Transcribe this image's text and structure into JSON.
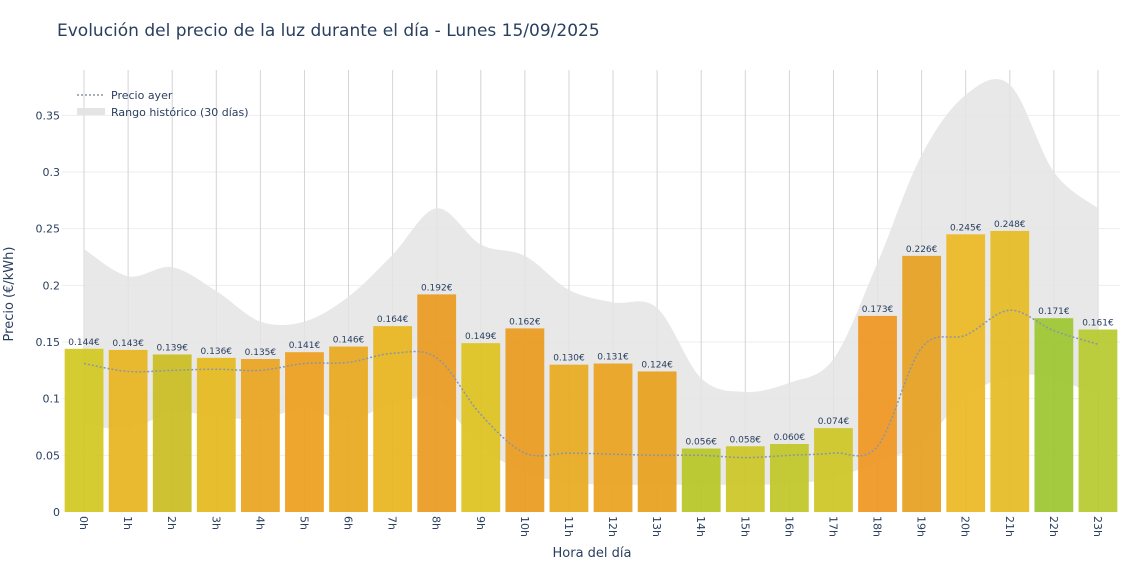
{
  "chart_data": {
    "type": "bar",
    "title": "Evolución del precio de la luz durante el día - Lunes 15/09/2025",
    "xlabel": "Hora del día",
    "ylabel": "Precio (€/kWh)",
    "ylim": [
      0,
      0.39
    ],
    "yticks": [
      0,
      0.05,
      0.1,
      0.15,
      0.2,
      0.25,
      0.3,
      0.35
    ],
    "ytick_labels": [
      "0",
      "0.05",
      "0.1",
      "0.15",
      "0.2",
      "0.25",
      "0.3",
      "0.35"
    ],
    "categories": [
      "0h",
      "1h",
      "2h",
      "3h",
      "4h",
      "5h",
      "6h",
      "7h",
      "8h",
      "9h",
      "10h",
      "11h",
      "12h",
      "13h",
      "14h",
      "15h",
      "16h",
      "17h",
      "18h",
      "19h",
      "20h",
      "21h",
      "22h",
      "23h"
    ],
    "values": [
      0.144,
      0.143,
      0.139,
      0.136,
      0.135,
      0.141,
      0.146,
      0.164,
      0.192,
      0.149,
      0.162,
      0.13,
      0.131,
      0.124,
      0.056,
      0.058,
      0.06,
      0.074,
      0.173,
      0.226,
      0.245,
      0.248,
      0.171,
      0.161
    ],
    "value_labels": [
      "0.144€",
      "0.143€",
      "0.139€",
      "0.136€",
      "0.135€",
      "0.141€",
      "0.146€",
      "0.164€",
      "0.192€",
      "0.149€",
      "0.162€",
      "0.130€",
      "0.131€",
      "0.124€",
      "0.056€",
      "0.058€",
      "0.060€",
      "0.074€",
      "0.173€",
      "0.226€",
      "0.245€",
      "0.248€",
      "0.171€",
      "0.161€"
    ],
    "bar_colors": [
      "#d1c81f",
      "#e7b41e",
      "#cbbd21",
      "#e5ba1c",
      "#e9a41e",
      "#ee9e1c",
      "#e9a81d",
      "#e8b51c",
      "#e99a1e",
      "#ddc11d",
      "#ea9a1c",
      "#e8a91e",
      "#e9a21e",
      "#e7a01c",
      "#b6c724",
      "#cbc625",
      "#bfc726",
      "#cdc524",
      "#ef9620",
      "#e6a01f",
      "#ecb722",
      "#e5bb23",
      "#9cc52f",
      "#b6c92e"
    ],
    "series": [
      {
        "name": "Precio ayer",
        "style": "dotted-line",
        "color": "#8a96a6",
        "values": [
          0.131,
          0.124,
          0.125,
          0.126,
          0.125,
          0.131,
          0.132,
          0.14,
          0.136,
          0.086,
          0.052,
          0.052,
          0.051,
          0.05,
          0.05,
          0.048,
          0.05,
          0.052,
          0.058,
          0.145,
          0.156,
          0.178,
          0.16,
          0.148
        ]
      },
      {
        "name": "Rango histórico (30 días)",
        "style": "band",
        "color": "#e4e4e4",
        "lower": [
          0.078,
          0.073,
          0.088,
          0.084,
          0.082,
          0.091,
          0.081,
          0.096,
          0.099,
          0.058,
          0.035,
          0.026,
          0.024,
          0.024,
          0.024,
          0.024,
          0.025,
          0.03,
          0.044,
          0.061,
          0.101,
          0.12,
          0.118,
          0.102
        ],
        "upper": [
          0.232,
          0.208,
          0.216,
          0.195,
          0.168,
          0.168,
          0.19,
          0.227,
          0.268,
          0.236,
          0.226,
          0.196,
          0.185,
          0.18,
          0.118,
          0.106,
          0.114,
          0.135,
          0.22,
          0.315,
          0.368,
          0.377,
          0.3,
          0.268
        ]
      }
    ],
    "legend": {
      "placement": "top-left"
    },
    "grid": true
  }
}
